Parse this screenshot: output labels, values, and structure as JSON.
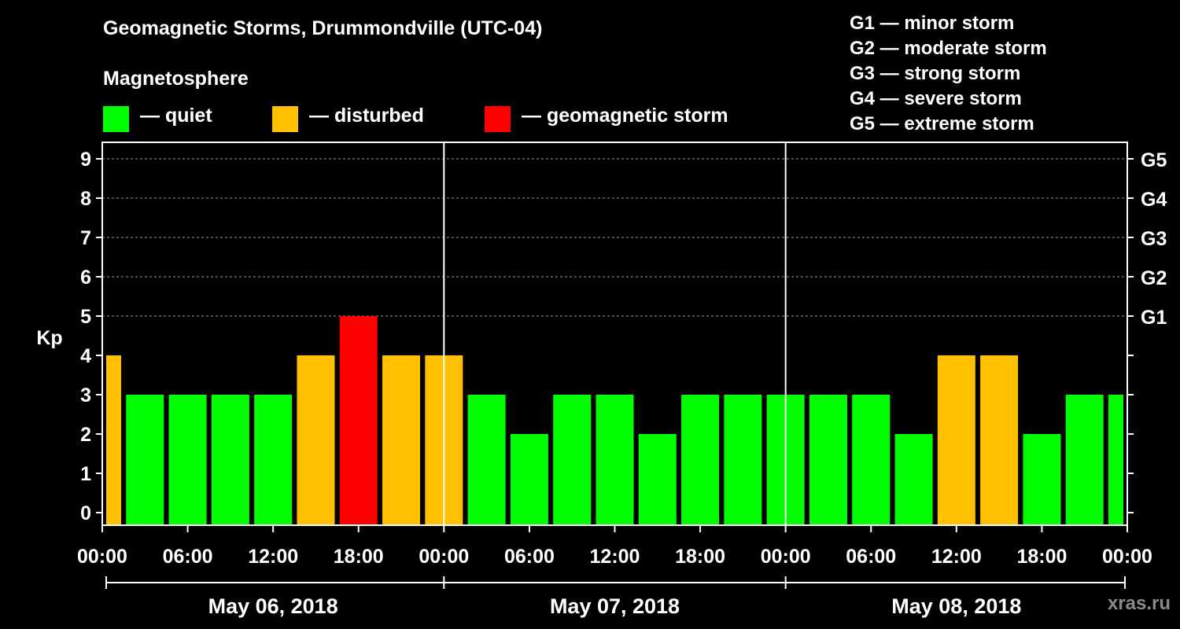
{
  "header": {
    "title": "Geomagnetic Storms, Drummondville (UTC-04)",
    "subtitle": "Magnetosphere"
  },
  "legend": [
    {
      "label": "— quiet",
      "color": "#00ff00"
    },
    {
      "label": "— disturbed",
      "color": "#ffc000"
    },
    {
      "label": "— geomagnetic storm",
      "color": "#ff0000"
    }
  ],
  "storm_levels": [
    "G1 — minor storm",
    "G2 — moderate storm",
    "G3 — strong storm",
    "G4 — severe storm",
    "G5 — extreme storm"
  ],
  "watermark": "xras.ru",
  "chart_data": {
    "type": "bar",
    "title": "Geomagnetic Storms, Drummondville (UTC-04)",
    "ylabel": "Kp",
    "ylim": [
      0,
      9
    ],
    "yticks": [
      0,
      1,
      2,
      3,
      4,
      5,
      6,
      7,
      8,
      9
    ],
    "right_axis": [
      {
        "kp": 5,
        "label": "G1"
      },
      {
        "kp": 6,
        "label": "G2"
      },
      {
        "kp": 7,
        "label": "G3"
      },
      {
        "kp": 8,
        "label": "G4"
      },
      {
        "kp": 9,
        "label": "G5"
      }
    ],
    "grid": true,
    "x_tick_labels": [
      "00:00",
      "06:00",
      "12:00",
      "18:00",
      "00:00",
      "06:00",
      "12:00",
      "18:00",
      "00:00",
      "06:00",
      "12:00",
      "18:00",
      "00:00"
    ],
    "dates": [
      "May 06, 2018",
      "May 07, 2018",
      "May 08, 2018"
    ],
    "categories": [
      "May 06 00:00",
      "May 06 03:00",
      "May 06 06:00",
      "May 06 09:00",
      "May 06 12:00",
      "May 06 15:00",
      "May 06 18:00",
      "May 06 21:00",
      "May 07 00:00",
      "May 07 03:00",
      "May 07 06:00",
      "May 07 09:00",
      "May 07 12:00",
      "May 07 15:00",
      "May 07 18:00",
      "May 07 21:00",
      "May 08 00:00",
      "May 08 03:00",
      "May 08 06:00",
      "May 08 09:00",
      "May 08 12:00",
      "May 08 15:00",
      "May 08 18:00",
      "May 08 21:00",
      "May 09 00:00"
    ],
    "values": [
      4,
      3,
      3,
      3,
      3,
      4,
      5,
      4,
      4,
      3,
      2,
      3,
      3,
      2,
      3,
      3,
      3,
      3,
      3,
      2,
      4,
      4,
      2,
      3,
      3
    ],
    "colors": {
      "quiet": "#00ff00",
      "disturbed": "#ffc000",
      "storm": "#ff0000"
    }
  }
}
